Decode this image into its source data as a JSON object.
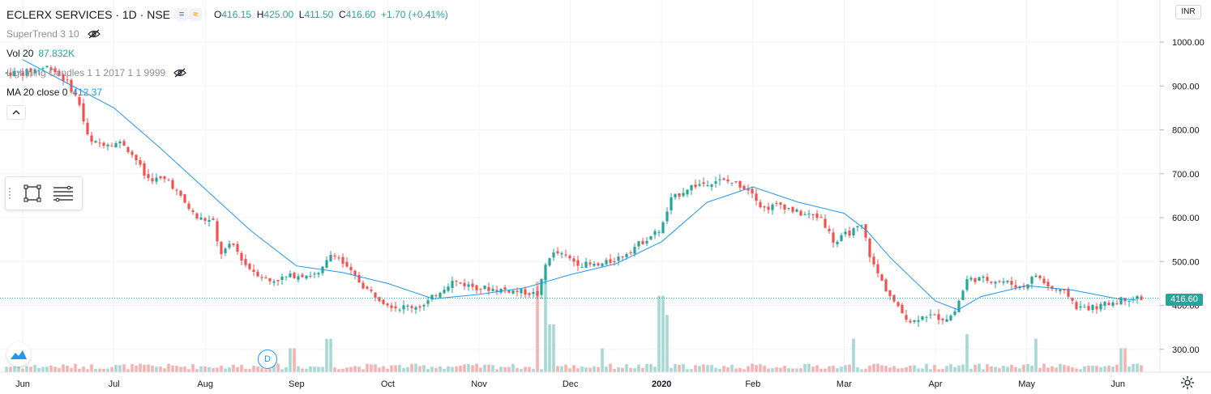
{
  "header": {
    "symbol": "ECLERX SERVICES · 1D · NSE",
    "open_label": "O",
    "open": "416.15",
    "high_label": "H",
    "high": "425.00",
    "low_label": "L",
    "low": "411.50",
    "close_label": "C",
    "close": "416.60",
    "change": "+1.70 (+0.41%)",
    "minus_btn": "=",
    "wave_btn": "≈"
  },
  "indicators": {
    "supertrend": "SuperTrend 3 10",
    "vol_label": "Vol 20",
    "vol_value": "87.832K",
    "lightning": "Lightning Candles 1 1 2017 1 1 9999",
    "ma_label": "MA 20 close 0",
    "ma_value": "412.37"
  },
  "currency": "INR",
  "last_price_tag": "416.60",
  "event_marker": "D",
  "colors": {
    "up": "#26a69a",
    "down": "#ef5350",
    "ma": "#2196f3",
    "vol_up": "#a7d9d4",
    "vol_down": "#f6b2b1"
  },
  "icons": [
    "eye-off-icon",
    "chevron-up-icon",
    "rectangle-tool-icon",
    "lines-tool-icon",
    "tradingview-logo-icon",
    "gear-icon"
  ],
  "chart_data": {
    "type": "candlestick",
    "y_axis": {
      "ticks": [
        "1000.00",
        "900.00",
        "800.00",
        "700.00",
        "600.00",
        "500.00",
        "400.00",
        "300.00"
      ],
      "min": 250,
      "max": 1060,
      "position": "right"
    },
    "x_axis": {
      "ticks": [
        "Jun",
        "Jul",
        "Aug",
        "Sep",
        "Oct",
        "Nov",
        "Dec",
        "2020",
        "Feb",
        "Mar",
        "Apr",
        "May",
        "Jun"
      ]
    },
    "last_price": 416.6,
    "close_series": [
      {
        "m": 0,
        "v": 930
      },
      {
        "m": 0.3,
        "v": 945
      },
      {
        "m": 0.5,
        "v": 905
      },
      {
        "m": 0.62,
        "v": 860
      },
      {
        "m": 0.7,
        "v": 790
      },
      {
        "m": 0.75,
        "v": 770
      },
      {
        "m": 1.1,
        "v": 770
      },
      {
        "m": 1.25,
        "v": 730
      },
      {
        "m": 1.35,
        "v": 690
      },
      {
        "m": 1.6,
        "v": 685
      },
      {
        "m": 1.75,
        "v": 640
      },
      {
        "m": 1.9,
        "v": 600
      },
      {
        "m": 2.1,
        "v": 590
      },
      {
        "m": 2.15,
        "v": 515
      },
      {
        "m": 2.3,
        "v": 540
      },
      {
        "m": 2.45,
        "v": 490
      },
      {
        "m": 2.7,
        "v": 455
      },
      {
        "m": 3.0,
        "v": 470
      },
      {
        "m": 3.25,
        "v": 470
      },
      {
        "m": 3.4,
        "v": 525
      },
      {
        "m": 3.55,
        "v": 485
      },
      {
        "m": 3.75,
        "v": 440
      },
      {
        "m": 3.95,
        "v": 410
      },
      {
        "m": 4.1,
        "v": 395
      },
      {
        "m": 4.4,
        "v": 400
      },
      {
        "m": 4.55,
        "v": 430
      },
      {
        "m": 4.7,
        "v": 455
      },
      {
        "m": 5.0,
        "v": 440
      },
      {
        "m": 5.3,
        "v": 435
      },
      {
        "m": 5.5,
        "v": 430
      },
      {
        "m": 5.65,
        "v": 425
      },
      {
        "m": 5.75,
        "v": 510
      },
      {
        "m": 5.85,
        "v": 520
      },
      {
        "m": 6.1,
        "v": 495
      },
      {
        "m": 6.3,
        "v": 490
      },
      {
        "m": 6.5,
        "v": 505
      },
      {
        "m": 6.75,
        "v": 540
      },
      {
        "m": 7.0,
        "v": 575
      },
      {
        "m": 7.1,
        "v": 640
      },
      {
        "m": 7.3,
        "v": 670
      },
      {
        "m": 7.6,
        "v": 685
      },
      {
        "m": 7.8,
        "v": 680
      },
      {
        "m": 8.0,
        "v": 660
      },
      {
        "m": 8.1,
        "v": 620
      },
      {
        "m": 8.3,
        "v": 630
      },
      {
        "m": 8.5,
        "v": 610
      },
      {
        "m": 8.75,
        "v": 600
      },
      {
        "m": 8.9,
        "v": 540
      },
      {
        "m": 9.0,
        "v": 560
      },
      {
        "m": 9.2,
        "v": 580
      },
      {
        "m": 9.3,
        "v": 500
      },
      {
        "m": 9.45,
        "v": 440
      },
      {
        "m": 9.6,
        "v": 390
      },
      {
        "m": 9.75,
        "v": 360
      },
      {
        "m": 9.85,
        "v": 380
      },
      {
        "m": 10.1,
        "v": 370
      },
      {
        "m": 10.2,
        "v": 380
      },
      {
        "m": 10.35,
        "v": 460
      },
      {
        "m": 10.5,
        "v": 460
      },
      {
        "m": 10.75,
        "v": 455
      },
      {
        "m": 10.95,
        "v": 440
      },
      {
        "m": 11.1,
        "v": 470
      },
      {
        "m": 11.25,
        "v": 440
      },
      {
        "m": 11.45,
        "v": 425
      },
      {
        "m": 11.55,
        "v": 395
      },
      {
        "m": 11.75,
        "v": 395
      },
      {
        "m": 11.9,
        "v": 405
      },
      {
        "m": 12.1,
        "v": 416.6
      }
    ],
    "ma20_series": [
      {
        "m": 0,
        "v": 960
      },
      {
        "m": 0.5,
        "v": 905
      },
      {
        "m": 1.0,
        "v": 850
      },
      {
        "m": 1.5,
        "v": 760
      },
      {
        "m": 2.0,
        "v": 665
      },
      {
        "m": 2.5,
        "v": 570
      },
      {
        "m": 3.0,
        "v": 490
      },
      {
        "m": 3.5,
        "v": 475
      },
      {
        "m": 4.0,
        "v": 450
      },
      {
        "m": 4.5,
        "v": 415
      },
      {
        "m": 5.0,
        "v": 425
      },
      {
        "m": 5.5,
        "v": 440
      },
      {
        "m": 6.0,
        "v": 470
      },
      {
        "m": 6.5,
        "v": 495
      },
      {
        "m": 7.0,
        "v": 545
      },
      {
        "m": 7.5,
        "v": 635
      },
      {
        "m": 8.0,
        "v": 670
      },
      {
        "m": 8.5,
        "v": 635
      },
      {
        "m": 9.0,
        "v": 610
      },
      {
        "m": 9.25,
        "v": 570
      },
      {
        "m": 9.5,
        "v": 510
      },
      {
        "m": 10.0,
        "v": 410
      },
      {
        "m": 10.25,
        "v": 390
      },
      {
        "m": 10.5,
        "v": 420
      },
      {
        "m": 11.0,
        "v": 445
      },
      {
        "m": 11.5,
        "v": 435
      },
      {
        "m": 12.0,
        "v": 415
      },
      {
        "m": 12.2,
        "v": 412.37
      }
    ],
    "volume_spikes": [
      {
        "m": 2.95,
        "rel": 0.25
      },
      {
        "m": 3.35,
        "rel": 0.35
      },
      {
        "m": 5.65,
        "rel": 0.95
      },
      {
        "m": 5.72,
        "rel": 1.0
      },
      {
        "m": 5.8,
        "rel": 0.5
      },
      {
        "m": 6.35,
        "rel": 0.25
      },
      {
        "m": 7.0,
        "rel": 0.8
      },
      {
        "m": 7.05,
        "rel": 0.6
      },
      {
        "m": 9.1,
        "rel": 0.35
      },
      {
        "m": 10.35,
        "rel": 0.4
      },
      {
        "m": 11.1,
        "rel": 0.35
      },
      {
        "m": 12.05,
        "rel": 0.25
      }
    ]
  }
}
